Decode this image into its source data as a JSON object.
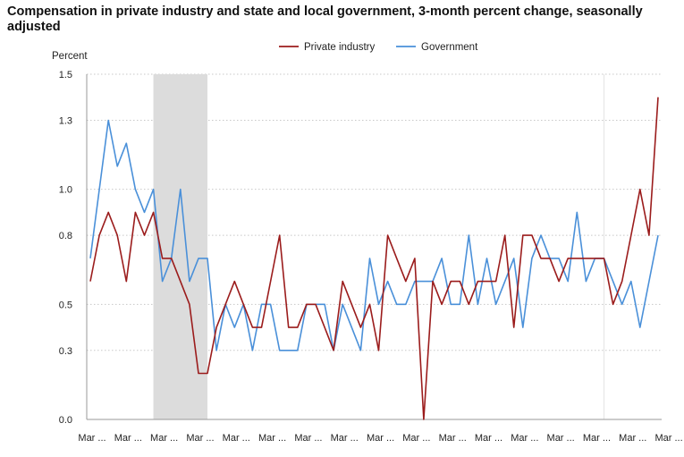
{
  "chart_data": {
    "type": "line",
    "title": "Compensation in private industry and state and local government, 3-month percent change, seasonally adjusted",
    "ylabel": "Percent",
    "xlabel": "",
    "ylim": [
      0,
      1.5
    ],
    "yticks": [
      0.0,
      0.3,
      0.5,
      0.8,
      1.0,
      1.3,
      1.5
    ],
    "ytick_labels": [
      "0.0",
      "0.3",
      "0.5",
      "0.8",
      "1.0",
      "1.3",
      "1.5"
    ],
    "xtick_labels": [
      "Mar ...",
      "Mar ...",
      "Mar ...",
      "Mar ...",
      "Mar ...",
      "Mar ...",
      "Mar ...",
      "Mar ...",
      "Mar ...",
      "Mar ...",
      "Mar ...",
      "Mar ...",
      "Mar ...",
      "Mar ...",
      "Mar ...",
      "Mar ...",
      "Mar ..."
    ],
    "grid": true,
    "legend": "top-center",
    "recession_shading": {
      "start_index": 7,
      "end_index": 13
    },
    "reference_line_index": 57,
    "series": [
      {
        "name": "Private industry",
        "color": "#9b1c1c",
        "values": [
          0.6,
          0.8,
          0.9,
          0.8,
          0.6,
          0.9,
          0.8,
          0.9,
          0.7,
          0.7,
          0.6,
          0.5,
          0.2,
          0.2,
          0.4,
          0.5,
          0.6,
          0.5,
          0.4,
          0.4,
          0.6,
          0.8,
          0.4,
          0.4,
          0.5,
          0.5,
          0.4,
          0.3,
          0.6,
          0.5,
          0.4,
          0.5,
          0.3,
          0.8,
          0.7,
          0.6,
          0.7,
          0.0,
          0.6,
          0.5,
          0.6,
          0.6,
          0.5,
          0.6,
          0.6,
          0.6,
          0.8,
          0.4,
          0.8,
          0.8,
          0.7,
          0.7,
          0.6,
          0.7,
          0.7,
          0.7,
          0.7,
          0.7,
          0.5,
          0.6,
          0.8,
          1.0,
          0.8,
          1.4
        ]
      },
      {
        "name": "Government",
        "color": "#4a90d9",
        "values": [
          0.7,
          1.0,
          1.3,
          1.1,
          1.2,
          1.0,
          0.9,
          1.0,
          0.6,
          0.7,
          1.0,
          0.6,
          0.7,
          0.7,
          0.3,
          0.5,
          0.4,
          0.5,
          0.3,
          0.5,
          0.5,
          0.3,
          0.3,
          0.3,
          0.5,
          0.5,
          0.5,
          0.3,
          0.5,
          0.4,
          0.3,
          0.7,
          0.5,
          0.6,
          0.5,
          0.5,
          0.6,
          0.6,
          0.6,
          0.7,
          0.5,
          0.5,
          0.8,
          0.5,
          0.7,
          0.5,
          0.6,
          0.7,
          0.4,
          0.7,
          0.8,
          0.7,
          0.7,
          0.6,
          0.9,
          0.6,
          0.7,
          0.7,
          0.6,
          0.5,
          0.6,
          0.4,
          0.6,
          0.8
        ]
      }
    ]
  }
}
